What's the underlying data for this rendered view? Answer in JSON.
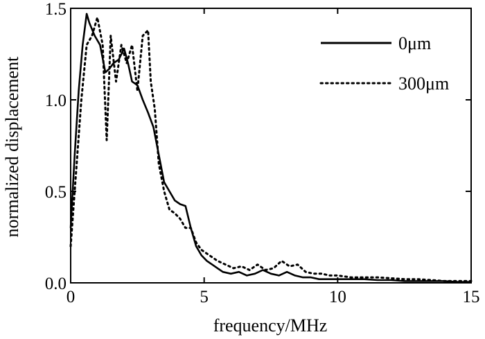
{
  "chart_data": {
    "type": "line",
    "title": "",
    "xlabel": "frequency/MHz",
    "ylabel": "normalized displacement",
    "xlim": [
      0,
      15
    ],
    "ylim": [
      0,
      1.5
    ],
    "xticks": [
      0,
      5,
      10,
      15
    ],
    "xtick_labels": [
      "0",
      "5",
      "10",
      "15"
    ],
    "yticks": [
      0,
      0.5,
      1.0,
      1.5
    ],
    "ytick_labels": [
      "0.0",
      "0.5",
      "1.0",
      "1.5"
    ],
    "grid": false,
    "legend_position": "top-right",
    "series": [
      {
        "name": "0μm",
        "style": "solid",
        "color": "#000000",
        "x": [
          0,
          0.15,
          0.3,
          0.45,
          0.6,
          0.7,
          0.9,
          1.1,
          1.3,
          1.45,
          1.6,
          1.8,
          2.0,
          2.15,
          2.3,
          2.5,
          2.7,
          2.9,
          3.1,
          3.3,
          3.5,
          3.7,
          3.9,
          4.1,
          4.3,
          4.5,
          4.7,
          4.9,
          5.1,
          5.3,
          5.5,
          5.7,
          6.0,
          6.3,
          6.6,
          6.9,
          7.2,
          7.5,
          7.8,
          8.1,
          8.4,
          8.7,
          9.0,
          9.3,
          9.6,
          10.0,
          10.5,
          11.0,
          11.5,
          12.0,
          12.5,
          13.0,
          13.5,
          14.0,
          14.5,
          15.0
        ],
        "y": [
          0.3,
          0.7,
          1.05,
          1.3,
          1.47,
          1.42,
          1.35,
          1.3,
          1.15,
          1.17,
          1.2,
          1.22,
          1.28,
          1.2,
          1.1,
          1.08,
          1.0,
          0.93,
          0.85,
          0.7,
          0.55,
          0.5,
          0.45,
          0.43,
          0.42,
          0.3,
          0.2,
          0.15,
          0.12,
          0.1,
          0.08,
          0.06,
          0.05,
          0.06,
          0.04,
          0.05,
          0.07,
          0.05,
          0.04,
          0.06,
          0.04,
          0.03,
          0.03,
          0.02,
          0.02,
          0.02,
          0.02,
          0.02,
          0.015,
          0.015,
          0.01,
          0.01,
          0.01,
          0.01,
          0.005,
          0.005
        ]
      },
      {
        "name": "300μm",
        "style": "dotted",
        "color": "#000000",
        "x": [
          0,
          0.2,
          0.4,
          0.6,
          0.8,
          1.0,
          1.2,
          1.35,
          1.5,
          1.7,
          1.9,
          2.1,
          2.3,
          2.5,
          2.7,
          2.9,
          3.0,
          3.15,
          3.3,
          3.5,
          3.7,
          3.9,
          4.1,
          4.3,
          4.5,
          4.7,
          4.9,
          5.2,
          5.5,
          5.8,
          6.1,
          6.4,
          6.7,
          7.0,
          7.3,
          7.6,
          7.9,
          8.2,
          8.5,
          8.8,
          9.1,
          9.4,
          9.7,
          10.0,
          10.5,
          11.0,
          11.5,
          12.0,
          12.5,
          13.0,
          13.5,
          14.0,
          14.5,
          15.0
        ],
        "y": [
          0.2,
          0.6,
          1.0,
          1.3,
          1.35,
          1.45,
          1.3,
          0.78,
          1.35,
          1.1,
          1.3,
          1.2,
          1.3,
          1.05,
          1.35,
          1.38,
          1.1,
          0.95,
          0.65,
          0.5,
          0.4,
          0.38,
          0.35,
          0.3,
          0.3,
          0.22,
          0.18,
          0.15,
          0.12,
          0.1,
          0.08,
          0.09,
          0.07,
          0.1,
          0.07,
          0.08,
          0.12,
          0.09,
          0.1,
          0.06,
          0.05,
          0.05,
          0.04,
          0.04,
          0.03,
          0.03,
          0.03,
          0.025,
          0.02,
          0.02,
          0.015,
          0.01,
          0.01,
          0.01
        ]
      }
    ]
  }
}
